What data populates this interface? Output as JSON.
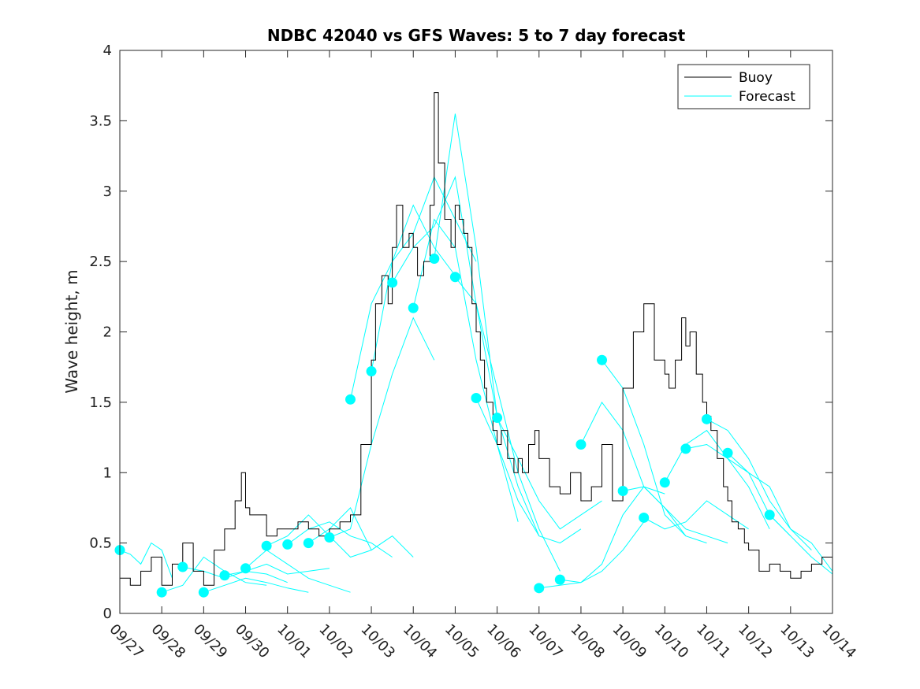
{
  "chart_data": {
    "type": "line",
    "title": "NDBC 42040 vs GFS Waves: 5 to 7 day forecast",
    "xlabel": "",
    "ylabel": "Wave height, m",
    "xlim": [
      0,
      17
    ],
    "ylim": [
      0,
      4
    ],
    "xtick_labels": [
      "09/27",
      "09/28",
      "09/29",
      "09/30",
      "10/01",
      "10/02",
      "10/03",
      "10/04",
      "10/05",
      "10/06",
      "10/07",
      "10/08",
      "10/09",
      "10/10",
      "10/11",
      "10/12",
      "10/13",
      "10/14"
    ],
    "yticks": [
      0,
      0.5,
      1,
      1.5,
      2,
      2.5,
      3,
      3.5,
      4
    ],
    "ytick_labels": [
      "0",
      "0.5",
      "1",
      "1.5",
      "2",
      "2.5",
      "3",
      "3.5",
      "4"
    ],
    "legend": {
      "position": "top-right",
      "entries": [
        "Buoy",
        "Forecast"
      ]
    },
    "colors": {
      "buoy": "#000000",
      "forecast": "#00ffff",
      "axis": "#262626"
    },
    "buoy": {
      "name": "Buoy",
      "x": [
        0.0,
        0.25,
        0.5,
        0.75,
        1.0,
        1.25,
        1.5,
        1.75,
        2.0,
        2.25,
        2.5,
        2.75,
        2.9,
        3.0,
        3.1,
        3.25,
        3.5,
        3.75,
        4.0,
        4.25,
        4.5,
        4.75,
        5.0,
        5.25,
        5.5,
        5.75,
        6.0,
        6.1,
        6.25,
        6.4,
        6.5,
        6.6,
        6.75,
        6.9,
        7.0,
        7.1,
        7.25,
        7.4,
        7.5,
        7.6,
        7.75,
        7.9,
        8.0,
        8.1,
        8.2,
        8.3,
        8.4,
        8.5,
        8.6,
        8.7,
        8.75,
        8.9,
        9.0,
        9.1,
        9.25,
        9.4,
        9.5,
        9.6,
        9.75,
        9.9,
        10.0,
        10.25,
        10.5,
        10.75,
        11.0,
        11.25,
        11.5,
        11.75,
        12.0,
        12.25,
        12.5,
        12.75,
        13.0,
        13.1,
        13.25,
        13.4,
        13.5,
        13.6,
        13.75,
        13.9,
        14.0,
        14.1,
        14.25,
        14.4,
        14.5,
        14.6,
        14.75,
        14.9,
        15.0,
        15.25,
        15.5,
        15.75,
        16.0,
        16.25,
        16.5,
        16.75,
        17.0
      ],
      "y": [
        0.25,
        0.2,
        0.3,
        0.4,
        0.2,
        0.35,
        0.5,
        0.3,
        0.2,
        0.45,
        0.6,
        0.8,
        1.0,
        0.75,
        0.7,
        0.7,
        0.55,
        0.6,
        0.6,
        0.65,
        0.6,
        0.55,
        0.6,
        0.65,
        0.7,
        1.2,
        1.8,
        2.2,
        2.4,
        2.2,
        2.6,
        2.9,
        2.6,
        2.7,
        2.6,
        2.4,
        2.5,
        2.9,
        3.7,
        3.2,
        2.8,
        2.6,
        2.9,
        2.8,
        2.7,
        2.6,
        2.2,
        2.0,
        1.8,
        1.6,
        1.5,
        1.3,
        1.2,
        1.3,
        1.1,
        1.0,
        1.1,
        1.0,
        1.2,
        1.3,
        1.1,
        0.9,
        0.85,
        1.0,
        0.8,
        0.9,
        1.2,
        0.8,
        1.6,
        2.0,
        2.2,
        1.8,
        1.7,
        1.6,
        1.8,
        2.1,
        1.9,
        2.0,
        1.7,
        1.5,
        1.4,
        1.3,
        1.1,
        0.9,
        0.8,
        0.65,
        0.6,
        0.5,
        0.45,
        0.3,
        0.35,
        0.3,
        0.25,
        0.3,
        0.35,
        0.4,
        0.3
      ]
    },
    "forecast_series": [
      {
        "x": [
          0.0,
          0.25,
          0.5,
          0.75,
          1.0,
          1.25
        ],
        "y": [
          0.45,
          0.42,
          0.35,
          0.5,
          0.45,
          0.25
        ]
      },
      {
        "x": [
          1.0,
          1.5,
          2.0,
          2.5,
          3.0,
          3.5
        ],
        "y": [
          0.15,
          0.2,
          0.4,
          0.3,
          0.22,
          0.2
        ]
      },
      {
        "x": [
          1.5,
          2.0,
          2.5,
          3.0,
          3.5,
          4.0
        ],
        "y": [
          0.33,
          0.3,
          0.25,
          0.3,
          0.28,
          0.22
        ]
      },
      {
        "x": [
          2.0,
          2.5,
          3.0,
          3.5,
          4.0,
          4.5
        ],
        "y": [
          0.15,
          0.2,
          0.25,
          0.22,
          0.18,
          0.15
        ]
      },
      {
        "x": [
          2.5,
          3.0,
          3.5,
          4.0,
          4.5,
          5.0
        ],
        "y": [
          0.27,
          0.3,
          0.35,
          0.28,
          0.3,
          0.32
        ]
      },
      {
        "x": [
          3.0,
          3.5,
          4.0,
          4.5,
          5.0,
          5.5
        ],
        "y": [
          0.32,
          0.45,
          0.35,
          0.25,
          0.2,
          0.15
        ]
      },
      {
        "x": [
          3.5,
          4.0,
          4.5,
          5.0,
          5.5,
          6.0
        ],
        "y": [
          0.48,
          0.55,
          0.7,
          0.55,
          0.4,
          0.45
        ]
      },
      {
        "x": [
          4.0,
          4.5,
          5.0,
          5.5,
          6.0,
          6.5
        ],
        "y": [
          0.49,
          0.6,
          0.65,
          0.55,
          0.5,
          0.4
        ]
      },
      {
        "x": [
          4.5,
          5.0,
          5.5,
          6.0,
          6.5,
          7.0
        ],
        "y": [
          0.5,
          0.6,
          0.75,
          0.45,
          0.55,
          0.4
        ]
      },
      {
        "x": [
          5.0,
          5.5,
          6.0,
          6.5,
          7.0,
          7.5
        ],
        "y": [
          0.54,
          0.6,
          1.2,
          1.7,
          2.1,
          1.8
        ]
      },
      {
        "x": [
          5.5,
          6.0,
          6.5,
          7.0,
          7.5,
          8.0
        ],
        "y": [
          1.52,
          2.2,
          2.5,
          2.9,
          2.6,
          2.4
        ]
      },
      {
        "x": [
          6.0,
          6.5,
          7.0,
          7.5,
          8.0,
          8.5
        ],
        "y": [
          1.72,
          2.5,
          2.7,
          3.1,
          2.8,
          2.5
        ]
      },
      {
        "x": [
          6.5,
          7.0,
          7.5,
          8.0,
          8.5,
          9.0
        ],
        "y": [
          2.35,
          2.6,
          2.75,
          3.1,
          2.2,
          1.4
        ]
      },
      {
        "x": [
          7.0,
          7.5,
          8.0,
          8.5,
          9.0,
          9.5
        ],
        "y": [
          2.17,
          2.8,
          2.6,
          1.8,
          1.2,
          0.65
        ]
      },
      {
        "x": [
          7.5,
          8.0,
          8.5,
          9.0,
          9.5,
          10.0
        ],
        "y": [
          2.52,
          3.55,
          2.6,
          1.4,
          0.9,
          0.55
        ]
      },
      {
        "x": [
          8.0,
          8.5,
          9.0,
          9.5,
          10.0,
          10.5
        ],
        "y": [
          2.39,
          2.2,
          1.6,
          1.0,
          0.6,
          0.3
        ]
      },
      {
        "x": [
          8.5,
          9.0,
          9.5,
          10.0,
          10.5,
          11.0
        ],
        "y": [
          1.53,
          1.2,
          0.8,
          0.55,
          0.5,
          0.6
        ]
      },
      {
        "x": [
          9.0,
          9.5,
          10.0,
          10.5,
          11.0,
          11.5
        ],
        "y": [
          1.39,
          1.1,
          0.8,
          0.6,
          0.7,
          0.8
        ]
      },
      {
        "x": [
          10.0,
          10.5,
          11.0,
          11.5,
          12.0,
          12.5
        ],
        "y": [
          0.18,
          0.2,
          0.22,
          0.3,
          0.45,
          0.65
        ]
      },
      {
        "x": [
          10.5,
          11.0,
          11.5,
          12.0,
          12.5,
          13.0
        ],
        "y": [
          0.24,
          0.22,
          0.35,
          0.7,
          0.9,
          0.85
        ]
      },
      {
        "x": [
          11.0,
          11.5,
          12.0,
          12.5,
          13.0,
          13.5
        ],
        "y": [
          1.2,
          1.5,
          1.3,
          0.9,
          0.75,
          0.55
        ]
      },
      {
        "x": [
          11.5,
          12.0,
          12.5,
          13.0,
          13.5,
          14.0
        ],
        "y": [
          1.8,
          1.6,
          1.2,
          0.7,
          0.55,
          0.5
        ]
      },
      {
        "x": [
          12.0,
          12.5,
          13.0,
          13.5,
          14.0,
          14.5
        ],
        "y": [
          0.87,
          0.9,
          0.75,
          0.6,
          0.55,
          0.5
        ]
      },
      {
        "x": [
          12.5,
          13.0,
          13.5,
          14.0,
          14.5,
          15.0
        ],
        "y": [
          0.68,
          0.6,
          0.65,
          0.8,
          0.7,
          0.6
        ]
      },
      {
        "x": [
          13.0,
          13.5,
          14.0,
          14.5,
          15.0,
          15.5
        ],
        "y": [
          0.93,
          1.2,
          1.3,
          1.1,
          0.9,
          0.6
        ]
      },
      {
        "x": [
          13.5,
          14.0,
          14.5,
          15.0,
          15.5,
          16.0
        ],
        "y": [
          1.17,
          1.2,
          1.1,
          1.0,
          0.7,
          0.55
        ]
      },
      {
        "x": [
          14.0,
          14.5,
          15.0,
          15.5,
          16.0,
          16.5
        ],
        "y": [
          1.38,
          1.3,
          1.1,
          0.8,
          0.6,
          0.45
        ]
      },
      {
        "x": [
          14.5,
          15.0,
          15.5,
          16.0,
          16.5,
          17.0
        ],
        "y": [
          1.14,
          1.0,
          0.9,
          0.6,
          0.5,
          0.3
        ]
      },
      {
        "x": [
          15.5,
          16.0,
          16.5,
          17.0
        ],
        "y": [
          0.7,
          0.55,
          0.4,
          0.28
        ]
      }
    ]
  }
}
